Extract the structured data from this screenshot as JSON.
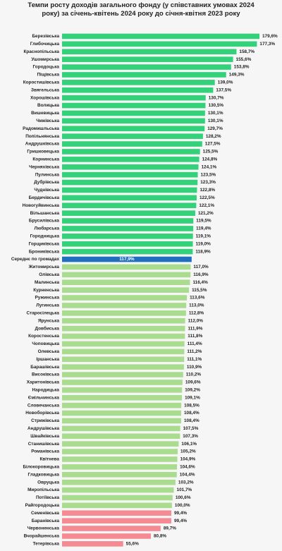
{
  "chart_data": {
    "type": "hbar",
    "title": "Темпи росту доходів загального фонду (у співставних умовах 2024 року) за січень-квітень 2024 року до січня-квітня 2023 року",
    "categories": [
      "Березівська",
      "Глибочицька",
      "Краснопільська",
      "Ушомирська",
      "Городоцька",
      "Піщівська",
      "Коростишівська",
      "Звягельська",
      "Хорошівська",
      "Волицька",
      "Вишевицька",
      "Чижівська",
      "Радомишльська",
      "Попільнянська",
      "Андрушківська",
      "Гришковецька",
      "Корнинська",
      "Черняхівська",
      "Пулинська",
      "Дубрівська",
      "Чуднівська",
      "Бердичівська",
      "Новогуйвинська",
      "Вільшанська",
      "Брусилівська",
      "Любарська",
      "Городницька",
      "Горщиківська",
      "Брониківська",
      "Середнє по громадах",
      "Житомирська",
      "Олівська",
      "Малинська",
      "Курненська",
      "Ружинська",
      "Лугинська",
      "Старосілецька",
      "Ярунська",
      "Довбиська",
      "Коростенська",
      "Чоповицька",
      "Олевська",
      "Іршанська",
      "Барашівська",
      "Високівська",
      "Харитонівська",
      "Народицька",
      "Ємільчинська",
      "Словечанська",
      "Новоборівська",
      "Стрижівська",
      "Андрушівська",
      "Швайківська",
      "Станишівська",
      "Романівська",
      "Квітнева",
      "Білокоровицька",
      "Гладковицька",
      "Овруцька",
      "Миропільська",
      "Потіївська",
      "Райгородоцька",
      "Семенівська",
      "Баранівська",
      "Червоненська",
      "Вчорайшенська",
      "Тетерівська"
    ],
    "values": [
      179.6,
      177.3,
      158.7,
      155.6,
      153.8,
      149.3,
      139.0,
      137.5,
      130.7,
      130.5,
      130.1,
      130.1,
      129.7,
      128.2,
      127.5,
      125.5,
      124.8,
      124.1,
      123.5,
      123.3,
      122.8,
      122.5,
      122.1,
      121.2,
      119.5,
      119.4,
      119.1,
      119.0,
      118.9,
      117.9,
      117.0,
      116.9,
      116.4,
      115.5,
      113.6,
      113.0,
      112.8,
      112.0,
      111.9,
      111.8,
      111.4,
      111.2,
      111.1,
      110.9,
      110.2,
      109.6,
      109.2,
      109.1,
      108.5,
      108.4,
      108.4,
      107.5,
      107.3,
      106.1,
      105.2,
      104.9,
      104.6,
      104.4,
      103.2,
      101.7,
      100.6,
      100.0,
      99.4,
      99.4,
      89.7,
      80.8,
      55.6
    ],
    "value_labels": [
      "179,6%",
      "177,3%",
      "158,7%",
      "155,6%",
      "153,8%",
      "149,3%",
      "139,0%",
      "137,5%",
      "130,7%",
      "130,5%",
      "130,1%",
      "130,1%",
      "129,7%",
      "128,2%",
      "127,5%",
      "125,5%",
      "124,8%",
      "124,1%",
      "123,5%",
      "123,3%",
      "122,8%",
      "122,5%",
      "122,1%",
      "121,2%",
      "119,5%",
      "119,4%",
      "119,1%",
      "119,0%",
      "118,9%",
      "117,9%",
      "117,0%",
      "116,9%",
      "116,4%",
      "115,5%",
      "113,6%",
      "113,0%",
      "112,8%",
      "112,0%",
      "111,9%",
      "111,8%",
      "111,4%",
      "111,2%",
      "111,1%",
      "110,9%",
      "110,2%",
      "109,6%",
      "109,2%",
      "109,1%",
      "108,5%",
      "108,4%",
      "108,4%",
      "107,5%",
      "107,3%",
      "106,1%",
      "105,2%",
      "104,9%",
      "104,6%",
      "104,4%",
      "103,2%",
      "101,7%",
      "100,6%",
      "100,0%",
      "99,4%",
      "99,4%",
      "89,7%",
      "80,8%",
      "55,6%"
    ],
    "colors": [
      "#33d17a",
      "#33d17a",
      "#33d17a",
      "#33d17a",
      "#33d17a",
      "#33d17a",
      "#33d17a",
      "#33d17a",
      "#33d17a",
      "#33d17a",
      "#33d17a",
      "#33d17a",
      "#33d17a",
      "#33d17a",
      "#33d17a",
      "#33d17a",
      "#33d17a",
      "#33d17a",
      "#33d17a",
      "#33d17a",
      "#33d17a",
      "#33d17a",
      "#33d17a",
      "#33d17a",
      "#33d17a",
      "#33d17a",
      "#33d17a",
      "#33d17a",
      "#33d17a",
      "#1f6fbf",
      "#a9dc8e",
      "#a9dc8e",
      "#a9dc8e",
      "#a9dc8e",
      "#a9dc8e",
      "#a9dc8e",
      "#a9dc8e",
      "#a9dc8e",
      "#a9dc8e",
      "#a9dc8e",
      "#a9dc8e",
      "#a9dc8e",
      "#a9dc8e",
      "#a9dc8e",
      "#a9dc8e",
      "#a9dc8e",
      "#a9dc8e",
      "#a9dc8e",
      "#a9dc8e",
      "#a9dc8e",
      "#a9dc8e",
      "#a9dc8e",
      "#a9dc8e",
      "#a9dc8e",
      "#a9dc8e",
      "#a9dc8e",
      "#a9dc8e",
      "#a9dc8e",
      "#a9dc8e",
      "#a9dc8e",
      "#a9dc8e",
      "#a9dc8e",
      "#f58a92",
      "#f58a92",
      "#f58a92",
      "#f58a92",
      "#f58a92"
    ]
  }
}
